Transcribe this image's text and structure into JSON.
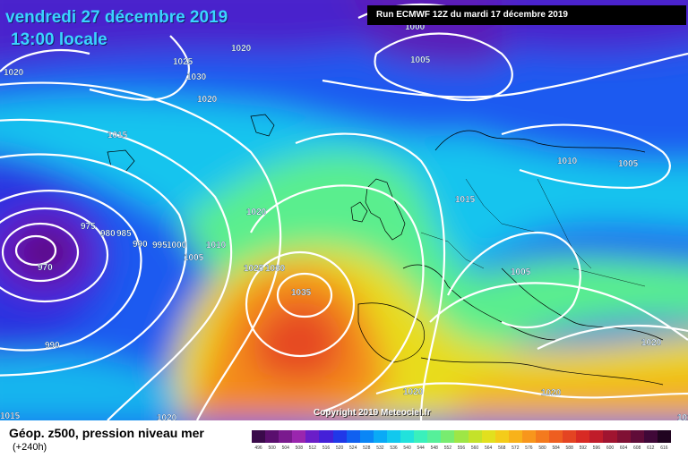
{
  "header": {
    "valid_date": "vendredi 27 décembre 2019",
    "valid_time": "13:00 locale",
    "run_label": "Run ECMWF 12Z du mardi 17 décembre 2019"
  },
  "footer": {
    "parameter": "Géop. z500, pression niveau mer",
    "lead_time": "(+240h)",
    "copyright": "Copyright 2019 Meteociel.fr"
  },
  "isobar_labels": [
    {
      "id": "h1000",
      "text": "1000"
    },
    {
      "id": "h1005n",
      "text": "1005"
    },
    {
      "id": "h1020a",
      "text": "1020"
    },
    {
      "id": "h1020b",
      "text": "1020"
    },
    {
      "id": "h1025",
      "text": "1025"
    },
    {
      "id": "h1030",
      "text": "1030"
    },
    {
      "id": "h1020c",
      "text": "1020"
    },
    {
      "id": "h1015a",
      "text": "1015"
    },
    {
      "id": "h1010a",
      "text": "1010"
    },
    {
      "id": "h1005a",
      "text": "1005"
    },
    {
      "id": "h1020d",
      "text": "1020"
    },
    {
      "id": "h1015b",
      "text": "1015"
    },
    {
      "id": "h975",
      "text": "975"
    },
    {
      "id": "h980",
      "text": "980"
    },
    {
      "id": "h985",
      "text": "985"
    },
    {
      "id": "h990a",
      "text": "990"
    },
    {
      "id": "h995",
      "text": "995"
    },
    {
      "id": "h1000b",
      "text": "1000"
    },
    {
      "id": "h1010b",
      "text": "1010"
    },
    {
      "id": "h1005b",
      "text": "1005"
    },
    {
      "id": "h1025b",
      "text": "1025"
    },
    {
      "id": "h1030b",
      "text": "1030"
    },
    {
      "id": "h970",
      "text": "970"
    },
    {
      "id": "h1035",
      "text": "1035"
    },
    {
      "id": "h1005c",
      "text": "1005"
    },
    {
      "id": "h990b",
      "text": "990"
    },
    {
      "id": "h1020e",
      "text": "1020"
    },
    {
      "id": "h1015c",
      "text": "1015"
    },
    {
      "id": "h1020f",
      "text": "1020"
    },
    {
      "id": "h1020g",
      "text": "1020"
    },
    {
      "id": "h1020h",
      "text": "1020"
    },
    {
      "id": "h1015d",
      "text": "1015"
    }
  ],
  "legend": {
    "values": [
      "496",
      "500",
      "504",
      "508",
      "512",
      "516",
      "520",
      "524",
      "528",
      "532",
      "536",
      "540",
      "544",
      "548",
      "552",
      "556",
      "560",
      "564",
      "568",
      "572",
      "576",
      "580",
      "584",
      "588",
      "592",
      "596",
      "600",
      "604",
      "608",
      "612",
      "616"
    ],
    "colors": [
      "#3a0a4a",
      "#5a0f6e",
      "#7a1a8e",
      "#9a26ae",
      "#6a1ec8",
      "#4420d8",
      "#2038e8",
      "#1060f0",
      "#0a86f6",
      "#0aaaf6",
      "#12c8ee",
      "#22e2dc",
      "#3af0bc",
      "#56f09a",
      "#78ec70",
      "#9ee646",
      "#c4e22a",
      "#e2e01e",
      "#f4cc1a",
      "#f8b21a",
      "#f8961c",
      "#f47a1e",
      "#ee5e20",
      "#e44422",
      "#d82a24",
      "#c01c2a",
      "#a01430",
      "#801034",
      "#600c38",
      "#400838",
      "#200420"
    ]
  }
}
